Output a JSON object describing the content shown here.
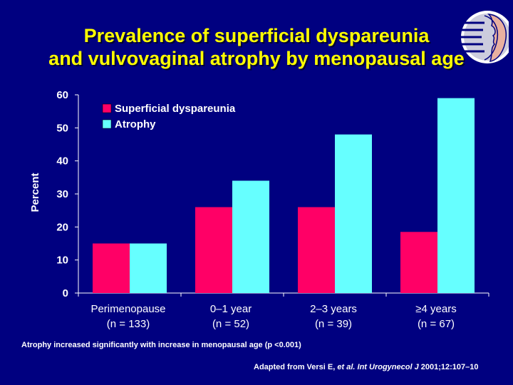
{
  "title": {
    "line1": "Prevalence of superficial dyspareunia",
    "line2": "and vulvovaginal atrophy by menopausal age"
  },
  "footnote": "Atrophy increased significantly with increase in menopausal age (p <0.001)",
  "citation": {
    "prefix": "Adapted from Versi E,",
    "etal": "et al.",
    "journal": "Int Urogynecol J",
    "suffix": "2001;12:107–10"
  },
  "logo_icon": "profile-heads-logo-icon",
  "chart_data": {
    "type": "bar",
    "ylabel": "Percent",
    "ylim": [
      0,
      60
    ],
    "yticks": [
      0,
      10,
      20,
      30,
      40,
      50,
      60
    ],
    "categories": [
      {
        "label": "Perimenopause",
        "n": "(n = 133)"
      },
      {
        "label": "0–1 year",
        "n": "(n = 52)"
      },
      {
        "label": "2–3 years",
        "n": "(n = 39)"
      },
      {
        "label": "≥4 years",
        "n": "(n = 67)"
      }
    ],
    "series": [
      {
        "name": "Superficial dyspareunia",
        "color": "#ff0066",
        "values": [
          15,
          26,
          26,
          18.5
        ]
      },
      {
        "name": "Atrophy",
        "color": "#66ffff",
        "values": [
          15,
          34,
          48,
          59
        ]
      }
    ],
    "legend_position": "top-left",
    "grid": false
  }
}
